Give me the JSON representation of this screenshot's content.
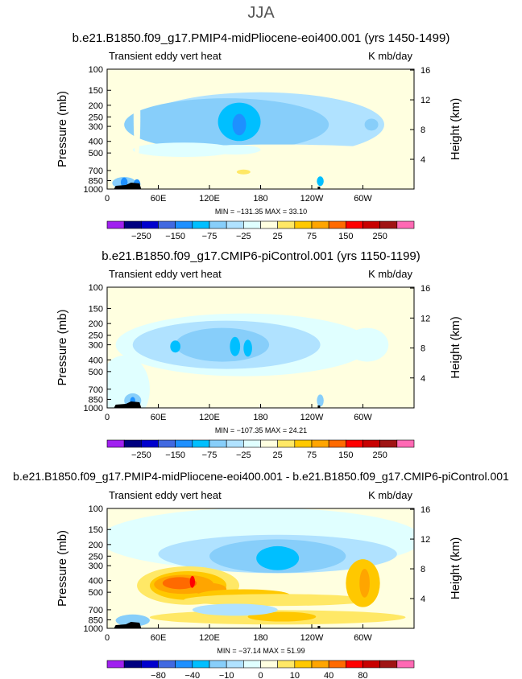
{
  "page_title": "JJA",
  "shared": {
    "left_axis_label": "Pressure (mb)",
    "right_axis_label": "Height (km)",
    "x_ticks": [
      "0",
      "60E",
      "120E",
      "180",
      "120W",
      "60W"
    ],
    "y_ticks": [
      "100",
      "150",
      "200",
      "250",
      "300",
      "400",
      "500",
      "700",
      "850",
      "1000"
    ],
    "height_ticks": [
      "16",
      "12",
      "8",
      "4"
    ]
  },
  "chart_data": [
    {
      "type": "heatmap",
      "title": "b.e21.B1850.f09_g17.PMIP4-midPliocene-eoi400.001 (yrs 1450-1499)",
      "left_label": "Transient eddy vert heat",
      "right_label": "K mb/day",
      "stats": "MIN = −131.35   MAX =  33.10",
      "min": -131.35,
      "max": 33.1,
      "colorbar_labels": [
        "-250",
        "-150",
        "-75",
        "-25",
        "25",
        "75",
        "150",
        "250"
      ],
      "field": [
        {
          "lon": 155,
          "p": 290,
          "value": -120,
          "note": "deepest negative core"
        },
        {
          "lon": 20,
          "p": 900,
          "value": -131.35
        }
      ]
    },
    {
      "type": "heatmap",
      "title": "b.e21.B1850.f09_g17.CMIP6-piControl.001 (yrs 1150-1199)",
      "left_label": "Transient eddy vert heat",
      "right_label": "K mb/day",
      "stats": "MIN = −107.35   MAX =  24.21",
      "min": -107.35,
      "max": 24.21,
      "colorbar_labels": [
        "-250",
        "-150",
        "-75",
        "-25",
        "25",
        "75",
        "150",
        "250"
      ]
    },
    {
      "type": "heatmap",
      "title": "b.e21.B1850.f09_g17.PMIP4-midPliocene-eoi400.001 - b.e21.B1850.f09_g17.CMIP6-piControl.001",
      "left_label": "Transient eddy vert heat",
      "right_label": "K mb/day",
      "stats": "MIN = −37.14   MAX =  51.99",
      "min": -37.14,
      "max": 51.99,
      "colorbar_labels": [
        "-80",
        "-40",
        "-10",
        "0",
        "10",
        "40",
        "80"
      ]
    }
  ],
  "colors": {
    "scale": [
      "#a020f0",
      "#000080",
      "#0000cd",
      "#4169e1",
      "#1e90ff",
      "#00bfff",
      "#87cefa",
      "#b0e2ff",
      "#e0ffff",
      "#ffffe0",
      "#ffe866",
      "#ffc800",
      "#ffa500",
      "#ff6a00",
      "#ff0000",
      "#c80000",
      "#a01414",
      "#ff69b4"
    ],
    "diff_scale": [
      "#a020f0",
      "#000080",
      "#0000cd",
      "#4169e1",
      "#1e90ff",
      "#00bfff",
      "#87cefa",
      "#b0e2ff",
      "#e0ffff",
      "#ffffe0",
      "#ffe866",
      "#ffc800",
      "#ffa500",
      "#ff6a00",
      "#ff0000",
      "#c80000",
      "#a01414",
      "#ff69b4"
    ]
  }
}
